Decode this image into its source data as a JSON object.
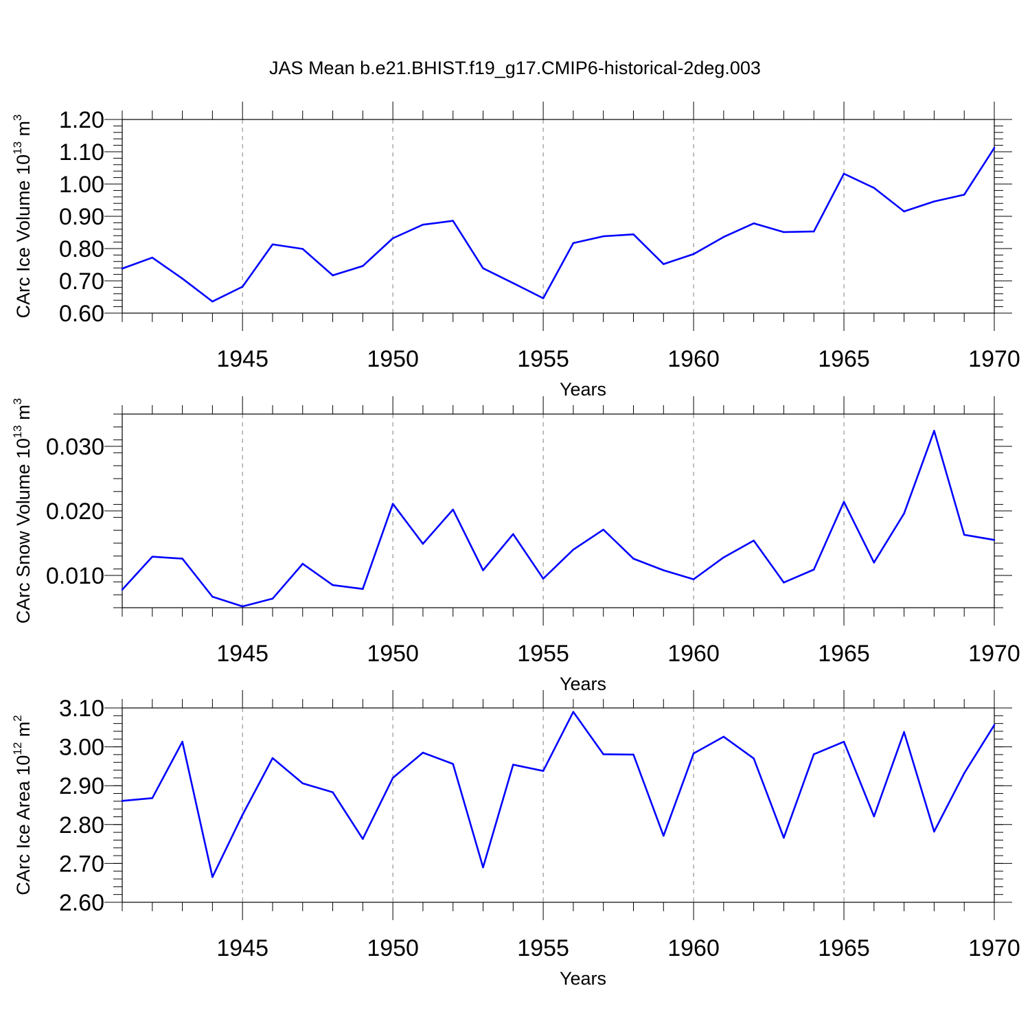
{
  "title": "JAS Mean b.e21.BHIST.f19_g17.CMIP6-historical-2deg.003",
  "colors": {
    "line": "#0000ff",
    "axis": "#000000",
    "grid": "#808080"
  },
  "chart_data": [
    {
      "type": "line",
      "ylabel": "CArc Ice Volume 10",
      "ylabel_exp": "13",
      "ylabel_unit": " m",
      "ylabel_unit_exp": "3",
      "xlabel": "Years",
      "xlim": [
        1941,
        1970
      ],
      "ylim": [
        0.6,
        1.2
      ],
      "grid": "vertical dashed",
      "x_ticks": [
        1945,
        1950,
        1955,
        1960,
        1965,
        1970
      ],
      "x_tick_labels": [
        "1945",
        "1950",
        "1955",
        "1960",
        "1965",
        "1970"
      ],
      "y_ticks": [
        0.6,
        0.7,
        0.8,
        0.9,
        1.0,
        1.1,
        1.2
      ],
      "y_tick_labels": [
        "0.60",
        "0.70",
        "0.80",
        "0.90",
        "1.00",
        "1.10",
        "1.20"
      ],
      "y_minor": 0.02,
      "x": [
        1941,
        1942,
        1943,
        1944,
        1945,
        1946,
        1947,
        1948,
        1949,
        1950,
        1951,
        1952,
        1953,
        1954,
        1955,
        1956,
        1957,
        1958,
        1959,
        1960,
        1961,
        1962,
        1963,
        1964,
        1965,
        1966,
        1967,
        1968,
        1969,
        1970
      ],
      "values": [
        0.738,
        0.772,
        0.707,
        0.636,
        0.682,
        0.813,
        0.799,
        0.717,
        0.746,
        0.832,
        0.874,
        0.886,
        0.739,
        0.693,
        0.646,
        0.817,
        0.838,
        0.844,
        0.752,
        0.783,
        0.836,
        0.878,
        0.851,
        0.853,
        1.032,
        0.988,
        0.915,
        0.946,
        0.967,
        1.112
      ]
    },
    {
      "type": "line",
      "ylabel": "CArc Snow Volume 10",
      "ylabel_exp": "13",
      "ylabel_unit": " m",
      "ylabel_unit_exp": "3",
      "xlabel": "Years",
      "xlim": [
        1941,
        1970
      ],
      "ylim": [
        0.005,
        0.035
      ],
      "grid": "vertical dashed",
      "x_ticks": [
        1945,
        1950,
        1955,
        1960,
        1965,
        1970
      ],
      "x_tick_labels": [
        "1945",
        "1950",
        "1955",
        "1960",
        "1965",
        "1970"
      ],
      "y_ticks": [
        0.01,
        0.02,
        0.03
      ],
      "y_tick_labels": [
        "0.010",
        "0.020",
        "0.030"
      ],
      "y_minor": 0.002,
      "x": [
        1941,
        1942,
        1943,
        1944,
        1945,
        1946,
        1947,
        1948,
        1949,
        1950,
        1951,
        1952,
        1953,
        1954,
        1955,
        1956,
        1957,
        1958,
        1959,
        1960,
        1961,
        1962,
        1963,
        1964,
        1965,
        1966,
        1967,
        1968,
        1969,
        1970
      ],
      "values": [
        0.0078,
        0.0129,
        0.0126,
        0.0067,
        0.0052,
        0.0064,
        0.0118,
        0.0085,
        0.0079,
        0.0211,
        0.0149,
        0.0202,
        0.0108,
        0.0164,
        0.0095,
        0.014,
        0.0171,
        0.0126,
        0.0108,
        0.0094,
        0.0128,
        0.0154,
        0.0089,
        0.0109,
        0.0214,
        0.012,
        0.0196,
        0.0324,
        0.0163,
        0.0155
      ]
    },
    {
      "type": "line",
      "ylabel": "CArc Ice Area 10",
      "ylabel_exp": "12",
      "ylabel_unit": " m",
      "ylabel_unit_exp": "2",
      "xlabel": "Years",
      "xlim": [
        1941,
        1970
      ],
      "ylim": [
        2.6,
        3.1
      ],
      "grid": "vertical dashed",
      "x_ticks": [
        1945,
        1950,
        1955,
        1960,
        1965,
        1970
      ],
      "x_tick_labels": [
        "1945",
        "1950",
        "1955",
        "1960",
        "1965",
        "1970"
      ],
      "y_ticks": [
        2.6,
        2.7,
        2.8,
        2.9,
        3.0,
        3.1
      ],
      "y_tick_labels": [
        "2.60",
        "2.70",
        "2.80",
        "2.90",
        "3.00",
        "3.10"
      ],
      "y_minor": 0.02,
      "x": [
        1941,
        1942,
        1943,
        1944,
        1945,
        1946,
        1947,
        1948,
        1949,
        1950,
        1951,
        1952,
        1953,
        1954,
        1955,
        1956,
        1957,
        1958,
        1959,
        1960,
        1961,
        1962,
        1963,
        1964,
        1965,
        1966,
        1967,
        1968,
        1969,
        1970
      ],
      "values": [
        2.861,
        2.868,
        3.013,
        2.665,
        2.825,
        2.971,
        2.906,
        2.883,
        2.763,
        2.92,
        2.985,
        2.956,
        2.69,
        2.954,
        2.938,
        3.09,
        2.981,
        2.98,
        2.771,
        2.983,
        3.026,
        2.97,
        2.766,
        2.981,
        3.013,
        2.821,
        3.038,
        2.782,
        2.932,
        3.056
      ]
    }
  ]
}
